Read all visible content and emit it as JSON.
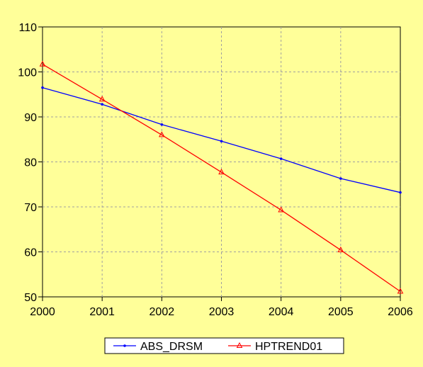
{
  "chart_data": {
    "type": "line",
    "title": "",
    "xlabel": "",
    "ylabel": "",
    "x": [
      2000,
      2001,
      2002,
      2003,
      2004,
      2005,
      2006
    ],
    "xlim": [
      2000,
      2006
    ],
    "ylim": [
      50,
      110
    ],
    "yticks": [
      50,
      60,
      70,
      80,
      90,
      100,
      110
    ],
    "xticks": [
      2000,
      2001,
      2002,
      2003,
      2004,
      2005,
      2006
    ],
    "grid": true,
    "legend_position": "bottom",
    "background_color": "#ffff99",
    "plot_background_color": "#ffff99",
    "series": [
      {
        "name": "ABS_DRSM",
        "color": "#0000ff",
        "marker": "dot",
        "values": [
          96.5,
          92.8,
          88.3,
          84.6,
          80.7,
          76.3,
          73.2
        ]
      },
      {
        "name": "HPTREND01",
        "color": "#ff0000",
        "marker": "triangle",
        "values": [
          101.7,
          93.9,
          86.0,
          77.7,
          69.3,
          60.4,
          51.2
        ]
      }
    ]
  }
}
